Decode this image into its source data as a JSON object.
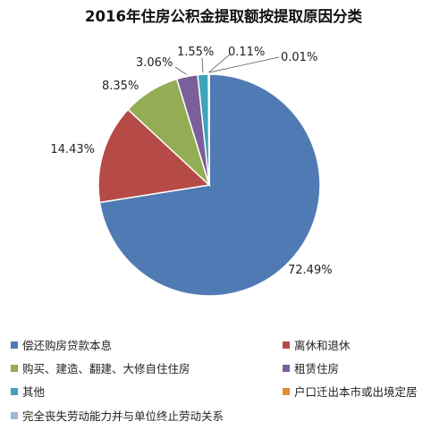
{
  "chart_data": {
    "type": "pie",
    "title": "2016年住房公积金提取额按提取原因分类",
    "slices": [
      {
        "label": "偿还购房贷款本息",
        "value": 72.49,
        "value_label": "72.49%",
        "color": "#4f7ab3"
      },
      {
        "label": "离休和退休",
        "value": 14.43,
        "value_label": "14.43%",
        "color": "#b64a47"
      },
      {
        "label": "购买、建造、翻建、大修自住住房",
        "value": 8.35,
        "value_label": "8.35%",
        "color": "#92ad53"
      },
      {
        "label": "租赁住房",
        "value": 3.06,
        "value_label": "3.06%",
        "color": "#7a5f9b"
      },
      {
        "label": "其他",
        "value": 1.55,
        "value_label": "1.55%",
        "color": "#3fa3b9"
      },
      {
        "label": "户口迁出本市或出境定居",
        "value": 0.11,
        "value_label": "0.11%",
        "color": "#e58a37"
      },
      {
        "label": "完全丧失劳动能力并与单位终止劳动关系",
        "value": 0.01,
        "value_label": "0.01%",
        "color": "#a3b5d7"
      }
    ],
    "legend_position": "bottom"
  }
}
